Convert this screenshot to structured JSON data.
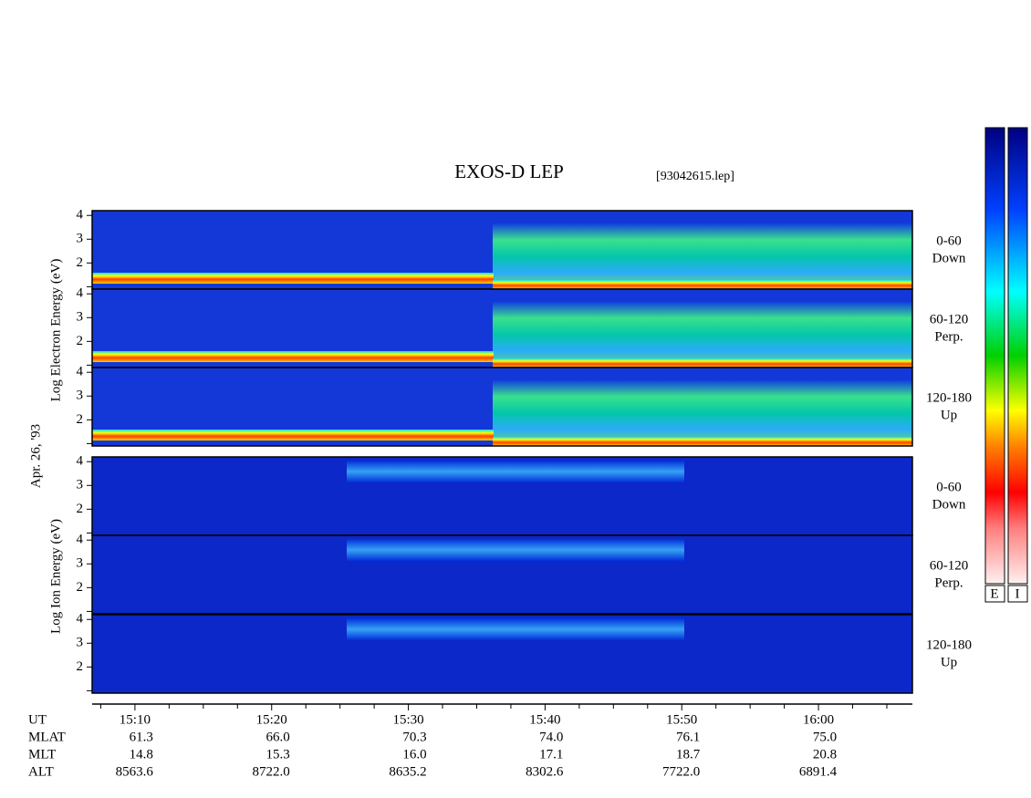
{
  "chart_data": {
    "type": "spectrogram",
    "title": "EXOS-D LEP",
    "subtitle": "[93042615.lep]",
    "date_label": "Apr. 26, '93",
    "group_labels": {
      "electron": "Log  Electron  Energy (eV)",
      "ion": "Log  Ion  Energy (eV)"
    },
    "panels": [
      {
        "group": "electron",
        "label": [
          "0-60",
          "Down"
        ]
      },
      {
        "group": "electron",
        "label": [
          "60-120",
          "Perp."
        ]
      },
      {
        "group": "electron",
        "label": [
          "120-180",
          "Up"
        ]
      },
      {
        "group": "ion",
        "label": [
          "0-60",
          "Down"
        ]
      },
      {
        "group": "ion",
        "label": [
          "60-120",
          "Perp."
        ]
      },
      {
        "group": "ion",
        "label": [
          "120-180",
          "Up"
        ]
      }
    ],
    "ylim": [
      0.9,
      4.2
    ],
    "yticks": [
      2,
      3,
      4
    ],
    "minor_yticks": [
      1
    ],
    "xlim": [
      906.87,
      966.87
    ],
    "xticks": [
      {
        "value": 910,
        "label": "15:10"
      },
      {
        "value": 920,
        "label": "15:20"
      },
      {
        "value": 930,
        "label": "15:30"
      },
      {
        "value": 940,
        "label": "15:40"
      },
      {
        "value": 950,
        "label": "15:50"
      },
      {
        "value": 960,
        "label": "16:00"
      }
    ],
    "minor_xticks": [
      907.5,
      912.5,
      915,
      917.5,
      922.5,
      925,
      927.5,
      932.5,
      935,
      937.5,
      942.5,
      945,
      947.5,
      952.5,
      955,
      957.5,
      962.5,
      965
    ],
    "ephemeris": {
      "row_names": [
        "UT",
        "MLAT",
        "MLT",
        "ALT"
      ],
      "rows": [
        [
          "61.3",
          "66.0",
          "70.3",
          "74.0",
          "76.1",
          "75.0"
        ],
        [
          "14.8",
          "15.3",
          "16.0",
          "17.1",
          "18.7",
          "20.8"
        ],
        [
          "8563.6",
          "8722.0",
          "8635.2",
          "8302.6",
          "7722.0",
          "6891.4"
        ]
      ]
    },
    "colorbar_labels": [
      "E",
      "I"
    ]
  }
}
